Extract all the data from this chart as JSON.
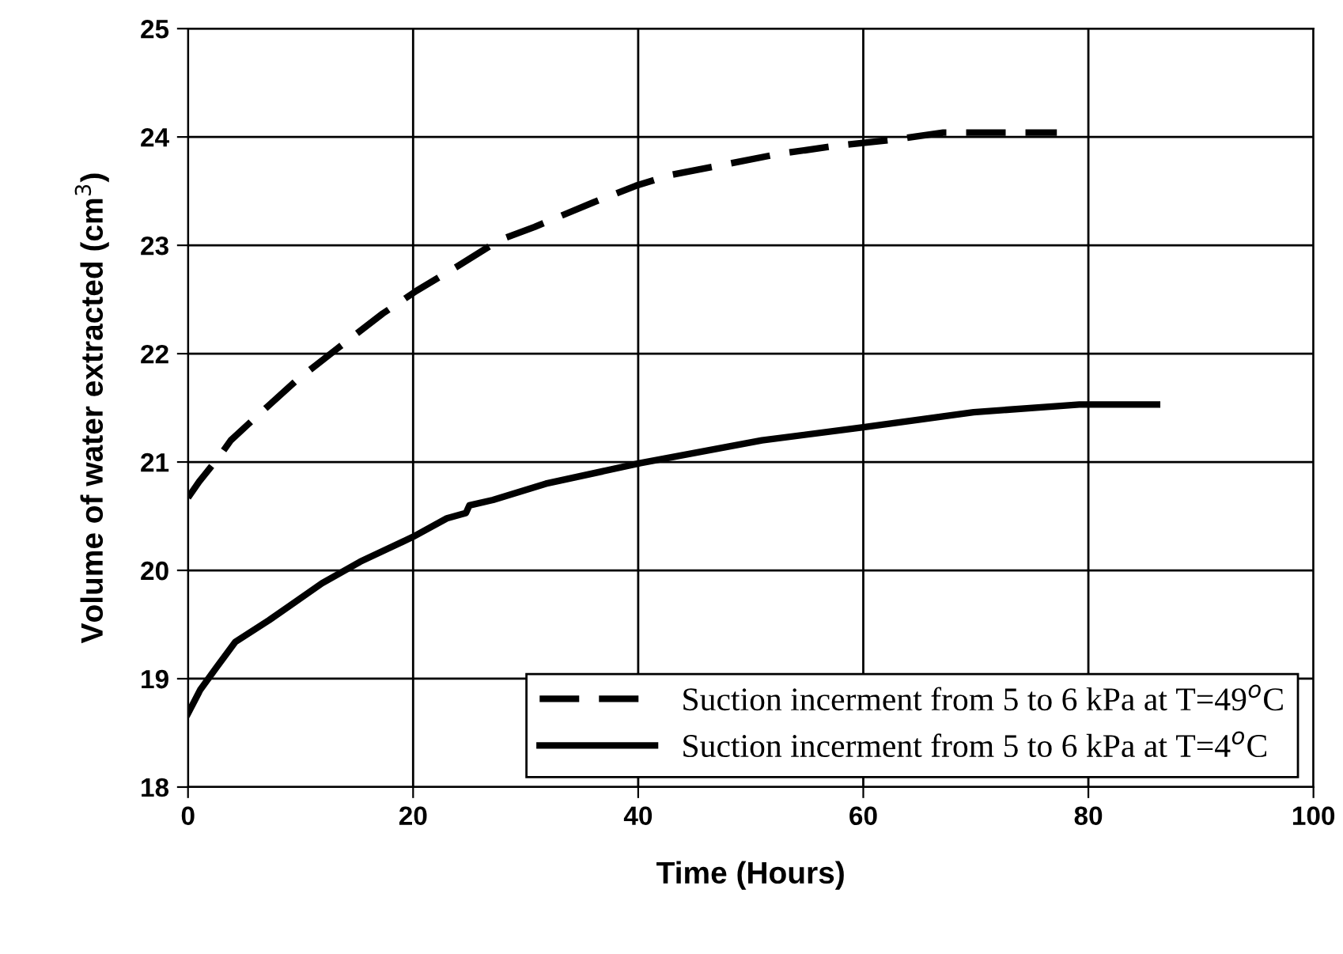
{
  "chart_data": {
    "type": "line",
    "xlabel": "Time (Hours)",
    "ylabel": "Volume of water extracted (cm$^{3}$)",
    "xlim": [
      0,
      100
    ],
    "xticks": [
      0,
      20,
      40,
      60,
      80,
      100
    ],
    "ylim": [
      18,
      25
    ],
    "yticks": [
      18,
      19,
      20,
      21,
      22,
      23,
      24,
      25
    ],
    "grid": true,
    "legend": "bottom right",
    "marker": "none",
    "series": [
      {
        "name": "Suction incerment from 5 to 6 kPa at T=49$^{o}$C",
        "color": "#000000",
        "line_style": "dashed",
        "x": [
          0,
          1,
          2.7,
          3.8,
          6.2,
          9.6,
          13.3,
          17.3,
          20.3,
          24,
          27.7,
          30.8,
          36.1,
          39.8,
          42.9,
          46.9,
          52.3,
          57.7,
          63.1,
          67.1,
          77.2
        ],
        "values": [
          20.67,
          20.82,
          21.04,
          21.2,
          21.43,
          21.75,
          22.05,
          22.37,
          22.58,
          22.81,
          23.05,
          23.17,
          23.4,
          23.55,
          23.65,
          23.73,
          23.84,
          23.92,
          23.98,
          24.04,
          24.04
        ]
      },
      {
        "name": "Suction incerment from 5 to 6 kPa at T=4$^{o}$C",
        "color": "#000000",
        "line_style": "solid",
        "x": [
          0,
          1.1,
          2.5,
          4.2,
          7.2,
          11.9,
          15.3,
          20,
          23,
          24.7,
          25,
          27.1,
          31.8,
          40.2,
          51,
          60,
          69.8,
          79.2,
          86.1
        ],
        "values": [
          18.68,
          18.9,
          19.1,
          19.34,
          19.54,
          19.88,
          20.08,
          20.31,
          20.48,
          20.53,
          20.6,
          20.65,
          20.8,
          20.99,
          21.2,
          21.32,
          21.46,
          21.53,
          21.53
        ]
      }
    ]
  }
}
